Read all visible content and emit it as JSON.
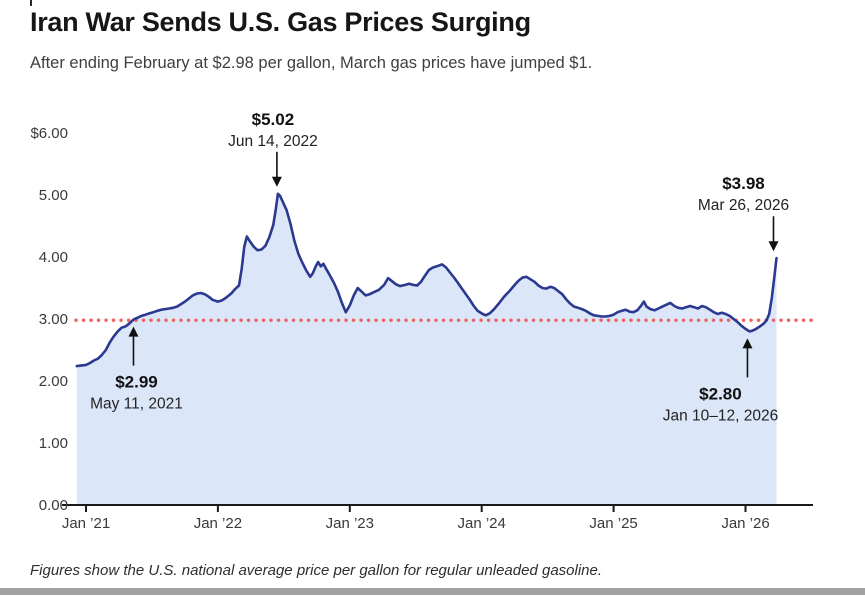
{
  "page": {
    "title": "Iran War Sends U.S. Gas Prices Surging",
    "subtitle": "After ending February at $2.98 per gallon, March gas prices have jumped $1.",
    "footnote": "Figures show the U.S. national average price per gallon for regular unleaded gasoline."
  },
  "colors": {
    "line": "#2b3990",
    "fill": "#dbe7f8",
    "reference": "#ee6461",
    "axis": "#1a1a1a",
    "axis_text": "#3a3a3a",
    "annotation_price": "#111111",
    "annotation_date": "#222222",
    "bottom_bar": "#a1a1a1"
  },
  "chart_data": {
    "type": "area",
    "title": "Iran War Sends U.S. Gas Prices Surging",
    "series_name": "U.S. national average price per gallon, regular unleaded gasoline",
    "x_unit": "years since Jan 1, 2021",
    "xlabel": "",
    "ylabel": "",
    "ylim": [
      0,
      6
    ],
    "grid": false,
    "legend": "none",
    "y_ticks": [
      {
        "label": "$6.00",
        "value": 6.0
      },
      {
        "label": "5.00",
        "value": 5.0
      },
      {
        "label": "4.00",
        "value": 4.0
      },
      {
        "label": "3.00",
        "value": 3.0
      },
      {
        "label": "2.00",
        "value": 2.0
      },
      {
        "label": "1.00",
        "value": 1.0
      },
      {
        "label": "0.00",
        "value": 0.0
      }
    ],
    "x_ticks": [
      {
        "label": "Jan ’21",
        "t": 0
      },
      {
        "label": "Jan ’22",
        "t": 1
      },
      {
        "label": "Jan ’23",
        "t": 2
      },
      {
        "label": "Jan ’24",
        "t": 3
      },
      {
        "label": "Jan ’25",
        "t": 4
      },
      {
        "label": "Jan ’26",
        "t": 5
      }
    ],
    "reference_line": {
      "value": 2.98,
      "style": "dotted"
    },
    "annotations": [
      {
        "price": "$5.02",
        "date": "Jun 14, 2022",
        "t": 1.455,
        "value": 5.02,
        "direction": "down",
        "adx": -1,
        "tdx": -5
      },
      {
        "price": "$3.98",
        "date": "Mar 26, 2026",
        "t": 5.235,
        "value": 3.98,
        "direction": "down",
        "adx": -3,
        "tdx": -33
      },
      {
        "price": "$2.99",
        "date": "May 11, 2021",
        "t": 0.36,
        "value": 2.99,
        "direction": "up",
        "adx": 0,
        "tdx": 3
      },
      {
        "price": "$2.80",
        "date": "Jan 10–12, 2026",
        "t": 5.03,
        "value": 2.8,
        "direction": "up",
        "adx": -2,
        "tdx": -29
      }
    ],
    "points": [
      [
        -0.07,
        2.24
      ],
      [
        0.0,
        2.26
      ],
      [
        0.03,
        2.29
      ],
      [
        0.06,
        2.33
      ],
      [
        0.09,
        2.36
      ],
      [
        0.12,
        2.42
      ],
      [
        0.15,
        2.5
      ],
      [
        0.18,
        2.62
      ],
      [
        0.21,
        2.72
      ],
      [
        0.24,
        2.8
      ],
      [
        0.27,
        2.86
      ],
      [
        0.3,
        2.88
      ],
      [
        0.33,
        2.93
      ],
      [
        0.36,
        2.99
      ],
      [
        0.39,
        3.02
      ],
      [
        0.42,
        3.05
      ],
      [
        0.45,
        3.07
      ],
      [
        0.48,
        3.09
      ],
      [
        0.51,
        3.11
      ],
      [
        0.54,
        3.13
      ],
      [
        0.57,
        3.15
      ],
      [
        0.6,
        3.16
      ],
      [
        0.63,
        3.17
      ],
      [
        0.66,
        3.18
      ],
      [
        0.69,
        3.2
      ],
      [
        0.72,
        3.24
      ],
      [
        0.75,
        3.28
      ],
      [
        0.78,
        3.33
      ],
      [
        0.81,
        3.38
      ],
      [
        0.84,
        3.41
      ],
      [
        0.87,
        3.42
      ],
      [
        0.9,
        3.4
      ],
      [
        0.93,
        3.36
      ],
      [
        0.96,
        3.31
      ],
      [
        1.0,
        3.28
      ],
      [
        1.03,
        3.3
      ],
      [
        1.06,
        3.34
      ],
      [
        1.1,
        3.41
      ],
      [
        1.13,
        3.48
      ],
      [
        1.16,
        3.54
      ],
      [
        1.18,
        3.8
      ],
      [
        1.2,
        4.17
      ],
      [
        1.22,
        4.33
      ],
      [
        1.24,
        4.26
      ],
      [
        1.27,
        4.17
      ],
      [
        1.3,
        4.11
      ],
      [
        1.33,
        4.12
      ],
      [
        1.36,
        4.18
      ],
      [
        1.39,
        4.32
      ],
      [
        1.42,
        4.52
      ],
      [
        1.44,
        4.78
      ],
      [
        1.455,
        5.02
      ],
      [
        1.47,
        4.99
      ],
      [
        1.49,
        4.9
      ],
      [
        1.52,
        4.76
      ],
      [
        1.55,
        4.54
      ],
      [
        1.58,
        4.26
      ],
      [
        1.61,
        4.05
      ],
      [
        1.64,
        3.91
      ],
      [
        1.67,
        3.78
      ],
      [
        1.7,
        3.68
      ],
      [
        1.72,
        3.74
      ],
      [
        1.74,
        3.84
      ],
      [
        1.76,
        3.92
      ],
      [
        1.78,
        3.85
      ],
      [
        1.8,
        3.89
      ],
      [
        1.82,
        3.81
      ],
      [
        1.85,
        3.7
      ],
      [
        1.88,
        3.58
      ],
      [
        1.91,
        3.44
      ],
      [
        1.94,
        3.26
      ],
      [
        1.97,
        3.11
      ],
      [
        2.0,
        3.22
      ],
      [
        2.03,
        3.38
      ],
      [
        2.06,
        3.5
      ],
      [
        2.09,
        3.44
      ],
      [
        2.12,
        3.38
      ],
      [
        2.15,
        3.4
      ],
      [
        2.18,
        3.43
      ],
      [
        2.22,
        3.47
      ],
      [
        2.26,
        3.55
      ],
      [
        2.29,
        3.66
      ],
      [
        2.32,
        3.61
      ],
      [
        2.35,
        3.56
      ],
      [
        2.38,
        3.53
      ],
      [
        2.42,
        3.55
      ],
      [
        2.45,
        3.57
      ],
      [
        2.48,
        3.55
      ],
      [
        2.51,
        3.54
      ],
      [
        2.54,
        3.6
      ],
      [
        2.57,
        3.7
      ],
      [
        2.6,
        3.79
      ],
      [
        2.63,
        3.83
      ],
      [
        2.66,
        3.85
      ],
      [
        2.7,
        3.88
      ],
      [
        2.73,
        3.83
      ],
      [
        2.76,
        3.75
      ],
      [
        2.79,
        3.67
      ],
      [
        2.82,
        3.58
      ],
      [
        2.85,
        3.49
      ],
      [
        2.88,
        3.4
      ],
      [
        2.91,
        3.31
      ],
      [
        2.94,
        3.21
      ],
      [
        2.97,
        3.13
      ],
      [
        3.0,
        3.09
      ],
      [
        3.03,
        3.06
      ],
      [
        3.06,
        3.09
      ],
      [
        3.09,
        3.15
      ],
      [
        3.13,
        3.25
      ],
      [
        3.17,
        3.36
      ],
      [
        3.21,
        3.45
      ],
      [
        3.25,
        3.55
      ],
      [
        3.28,
        3.62
      ],
      [
        3.31,
        3.67
      ],
      [
        3.34,
        3.68
      ],
      [
        3.37,
        3.64
      ],
      [
        3.4,
        3.6
      ],
      [
        3.43,
        3.54
      ],
      [
        3.46,
        3.5
      ],
      [
        3.49,
        3.49
      ],
      [
        3.52,
        3.52
      ],
      [
        3.55,
        3.5
      ],
      [
        3.58,
        3.45
      ],
      [
        3.61,
        3.4
      ],
      [
        3.64,
        3.32
      ],
      [
        3.67,
        3.25
      ],
      [
        3.7,
        3.2
      ],
      [
        3.73,
        3.18
      ],
      [
        3.76,
        3.16
      ],
      [
        3.79,
        3.13
      ],
      [
        3.82,
        3.09
      ],
      [
        3.85,
        3.06
      ],
      [
        3.88,
        3.05
      ],
      [
        3.91,
        3.04
      ],
      [
        3.94,
        3.04
      ],
      [
        3.97,
        3.05
      ],
      [
        4.0,
        3.07
      ],
      [
        4.03,
        3.11
      ],
      [
        4.06,
        3.13
      ],
      [
        4.09,
        3.15
      ],
      [
        4.12,
        3.12
      ],
      [
        4.15,
        3.11
      ],
      [
        4.18,
        3.14
      ],
      [
        4.21,
        3.22
      ],
      [
        4.23,
        3.28
      ],
      [
        4.25,
        3.2
      ],
      [
        4.28,
        3.16
      ],
      [
        4.31,
        3.14
      ],
      [
        4.34,
        3.17
      ],
      [
        4.37,
        3.2
      ],
      [
        4.4,
        3.23
      ],
      [
        4.43,
        3.26
      ],
      [
        4.46,
        3.21
      ],
      [
        4.49,
        3.18
      ],
      [
        4.52,
        3.17
      ],
      [
        4.55,
        3.19
      ],
      [
        4.58,
        3.21
      ],
      [
        4.61,
        3.19
      ],
      [
        4.64,
        3.17
      ],
      [
        4.67,
        3.21
      ],
      [
        4.7,
        3.19
      ],
      [
        4.73,
        3.15
      ],
      [
        4.76,
        3.11
      ],
      [
        4.79,
        3.08
      ],
      [
        4.82,
        3.1
      ],
      [
        4.85,
        3.08
      ],
      [
        4.88,
        3.05
      ],
      [
        4.91,
        3.0
      ],
      [
        4.94,
        2.95
      ],
      [
        4.97,
        2.89
      ],
      [
        5.0,
        2.84
      ],
      [
        5.03,
        2.8
      ],
      [
        5.05,
        2.81
      ],
      [
        5.08,
        2.84
      ],
      [
        5.11,
        2.88
      ],
      [
        5.14,
        2.93
      ],
      [
        5.16,
        2.98
      ],
      [
        5.18,
        3.08
      ],
      [
        5.2,
        3.35
      ],
      [
        5.22,
        3.7
      ],
      [
        5.235,
        3.98
      ]
    ]
  }
}
